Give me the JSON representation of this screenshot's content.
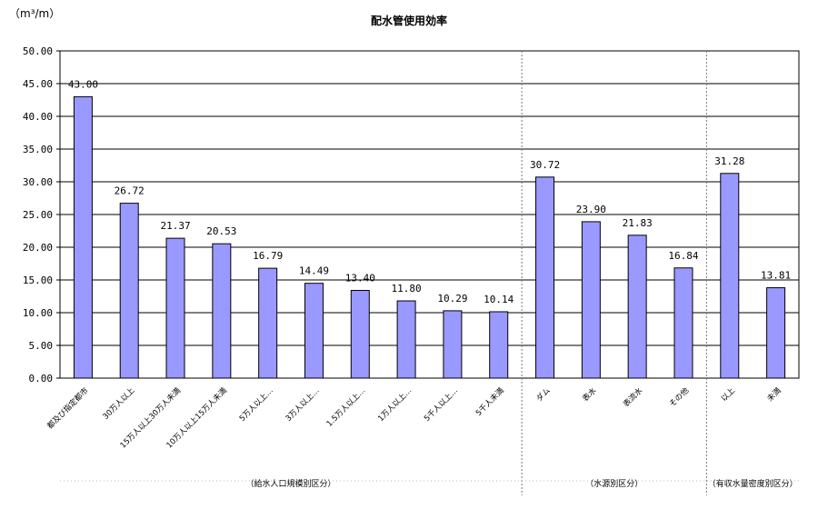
{
  "unit_label": "（m³/m）",
  "chart_data": {
    "type": "bar",
    "title": "配水管使用効率",
    "ylim": [
      0,
      50
    ],
    "yticks": [
      "0.00",
      "5.00",
      "10.00",
      "15.00",
      "20.00",
      "25.00",
      "30.00",
      "35.00",
      "40.00",
      "45.00",
      "50.00"
    ],
    "bar_color": "#9999ff",
    "grid": true,
    "categories": [
      "都及び指定都市",
      "30万人以上",
      "15万人以上30万人未満",
      "10万人以上15万人未満",
      "5万人以上…",
      "3万人以上…",
      "1.5万人以上…",
      "1万人以上…",
      "5千人以上…",
      "5千人未満",
      "ダム",
      "表水",
      "表流水",
      "その他",
      "以上",
      "未満"
    ],
    "values": [
      43.0,
      26.72,
      21.37,
      20.53,
      16.79,
      14.49,
      13.4,
      11.8,
      10.29,
      10.14,
      30.72,
      23.9,
      21.83,
      16.84,
      31.28,
      13.81
    ],
    "data_labels": [
      "43.00",
      "26.72",
      "21.37",
      "20.53",
      "16.79",
      "14.49",
      "13.40",
      "11.80",
      "10.29",
      "10.14",
      "30.72",
      "23.90",
      "21.83",
      "16.84",
      "31.28",
      "13.81"
    ],
    "groups": [
      {
        "label": "（給水人口規模別区分）",
        "count": 10
      },
      {
        "label": "（水源別区分）",
        "count": 4
      },
      {
        "label": "（有収水量密度別区分）",
        "count": 2
      }
    ]
  }
}
